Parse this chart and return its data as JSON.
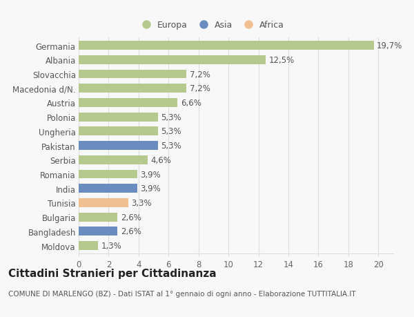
{
  "countries": [
    "Germania",
    "Albania",
    "Slovacchia",
    "Macedonia d/N.",
    "Austria",
    "Polonia",
    "Ungheria",
    "Pakistan",
    "Serbia",
    "Romania",
    "India",
    "Tunisia",
    "Bulgaria",
    "Bangladesh",
    "Moldova"
  ],
  "values": [
    19.7,
    12.5,
    7.2,
    7.2,
    6.6,
    5.3,
    5.3,
    5.3,
    4.6,
    3.9,
    3.9,
    3.3,
    2.6,
    2.6,
    1.3
  ],
  "labels": [
    "19,7%",
    "12,5%",
    "7,2%",
    "7,2%",
    "6,6%",
    "5,3%",
    "5,3%",
    "5,3%",
    "4,6%",
    "3,9%",
    "3,9%",
    "3,3%",
    "2,6%",
    "2,6%",
    "1,3%"
  ],
  "colors": [
    "#b5c98e",
    "#b5c98e",
    "#b5c98e",
    "#b5c98e",
    "#b5c98e",
    "#b5c98e",
    "#b5c98e",
    "#6b8cbf",
    "#b5c98e",
    "#b5c98e",
    "#6b8cbf",
    "#f0c090",
    "#b5c98e",
    "#6b8cbf",
    "#b5c98e"
  ],
  "legend_labels": [
    "Europa",
    "Asia",
    "Africa"
  ],
  "legend_colors": [
    "#b5c98e",
    "#6b8cbf",
    "#f0c090"
  ],
  "title": "Cittadini Stranieri per Cittadinanza",
  "subtitle": "COMUNE DI MARLENGO (BZ) - Dati ISTAT al 1° gennaio di ogni anno - Elaborazione TUTTITALIA.IT",
  "xlim": [
    0,
    21
  ],
  "xticks": [
    0,
    2,
    4,
    6,
    8,
    10,
    12,
    14,
    16,
    18,
    20
  ],
  "background_color": "#f8f8f8",
  "grid_color": "#dddddd",
  "bar_height": 0.62,
  "label_fontsize": 8.5,
  "tick_fontsize": 8.5,
  "title_fontsize": 11,
  "subtitle_fontsize": 7.5
}
